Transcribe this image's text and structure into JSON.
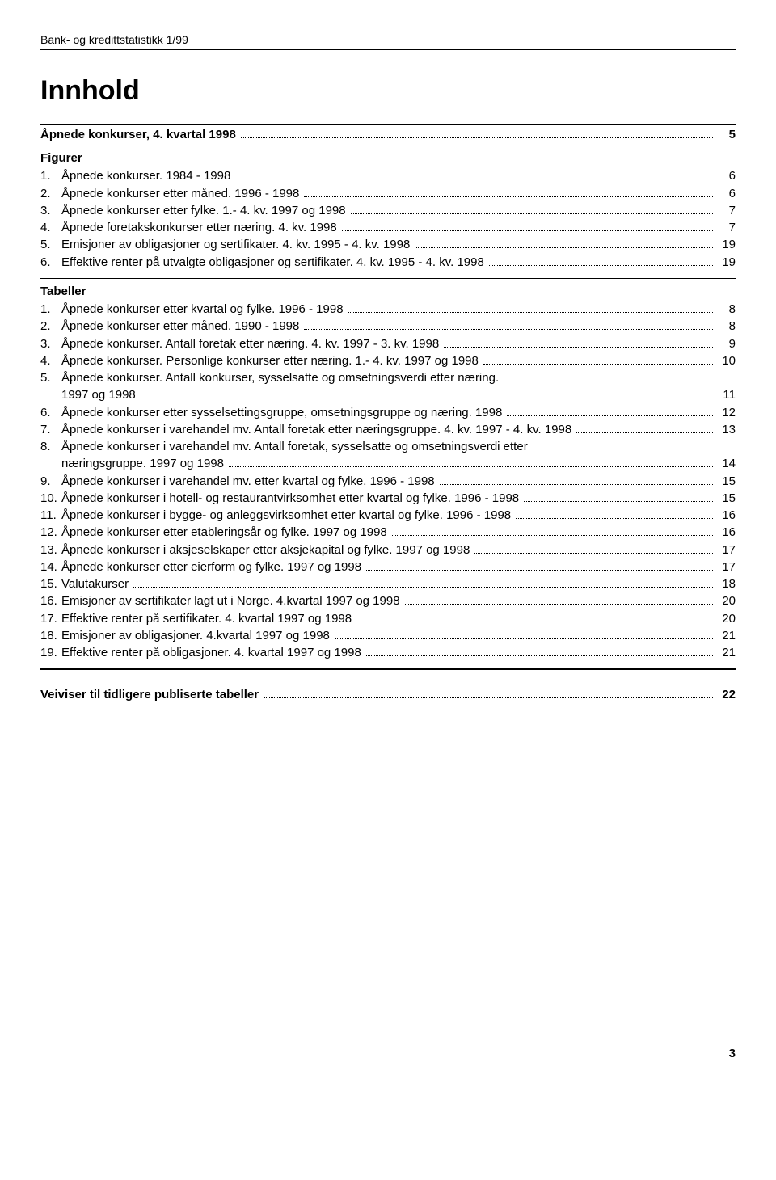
{
  "header": "Bank- og kredittstatistikk 1/99",
  "title": "Innhold",
  "top_entry": {
    "label": "Åpnede konkurser, 4. kvartal 1998",
    "page": "5"
  },
  "figurer_heading": "Figurer",
  "figurer": [
    {
      "n": "1.",
      "label": "Åpnede konkurser. 1984 - 1998",
      "page": "6"
    },
    {
      "n": "2.",
      "label": "Åpnede konkurser etter måned. 1996 - 1998",
      "page": "6"
    },
    {
      "n": "3.",
      "label": "Åpnede konkurser etter fylke. 1.- 4. kv. 1997 og 1998",
      "page": "7"
    },
    {
      "n": "4.",
      "label": "Åpnede foretakskonkurser etter næring. 4. kv. 1998",
      "page": "7"
    },
    {
      "n": "5.",
      "label": "Emisjoner av obligasjoner og sertifikater. 4. kv. 1995 - 4. kv. 1998",
      "page": "19"
    },
    {
      "n": "6.",
      "label": "Effektive renter på utvalgte obligasjoner og sertifikater. 4. kv. 1995 - 4. kv. 1998",
      "page": "19"
    }
  ],
  "tabeller_heading": "Tabeller",
  "tabeller": [
    {
      "n": "1.",
      "label": "Åpnede konkurser etter kvartal og fylke. 1996 - 1998",
      "page": "8"
    },
    {
      "n": "2.",
      "label": "Åpnede konkurser etter måned. 1990 - 1998",
      "page": "8"
    },
    {
      "n": "3.",
      "label": "Åpnede konkurser. Antall foretak etter næring. 4. kv. 1997 - 3. kv. 1998",
      "page": "9"
    },
    {
      "n": "4.",
      "label": "Åpnede konkurser. Personlige konkurser etter næring. 1.- 4. kv. 1997 og 1998",
      "page": "10"
    },
    {
      "n": "5.",
      "label": "Åpnede konkurser. Antall konkurser, sysselsatte og omsetningsverdi etter næring.",
      "cont": "1997 og 1998",
      "page": "11"
    },
    {
      "n": "6.",
      "label": "Åpnede konkurser etter sysselsettingsgruppe, omsetningsgruppe og næring. 1998",
      "page": "12"
    },
    {
      "n": "7.",
      "label": "Åpnede konkurser i varehandel mv. Antall foretak etter næringsgruppe. 4. kv. 1997 - 4. kv. 1998",
      "page": "13"
    },
    {
      "n": "8.",
      "label": "Åpnede konkurser i varehandel mv. Antall foretak, sysselsatte og omsetningsverdi etter",
      "cont": "næringsgruppe. 1997 og 1998",
      "page": "14"
    },
    {
      "n": "9.",
      "label": "Åpnede konkurser i varehandel mv. etter kvartal og fylke. 1996 - 1998",
      "page": "15"
    },
    {
      "n": "10.",
      "label": "Åpnede konkurser i hotell- og restaurantvirksomhet etter kvartal og fylke. 1996 - 1998",
      "page": "15"
    },
    {
      "n": "11.",
      "label": "Åpnede konkurser i bygge- og anleggsvirksomhet etter kvartal og fylke. 1996 - 1998",
      "page": "16"
    },
    {
      "n": "12.",
      "label": "Åpnede konkurser etter etableringsår og fylke. 1997 og 1998",
      "page": "16"
    },
    {
      "n": "13.",
      "label": "Åpnede konkurser i aksjeselskaper etter aksjekapital og fylke. 1997 og 1998",
      "page": "17"
    },
    {
      "n": "14.",
      "label": "Åpnede konkurser etter eierform og fylke. 1997 og 1998",
      "page": "17"
    },
    {
      "n": "15.",
      "label": "Valutakurser",
      "page": "18"
    },
    {
      "n": "16.",
      "label": "Emisjoner av sertifikater lagt ut i Norge. 4.kvartal 1997 og 1998",
      "page": "20"
    },
    {
      "n": "17.",
      "label": "Effektive renter på sertifikater. 4. kvartal 1997 og 1998",
      "page": "20"
    },
    {
      "n": "18.",
      "label": "Emisjoner av obligasjoner. 4.kvartal 1997 og 1998",
      "page": "21"
    },
    {
      "n": "19.",
      "label": "Effektive renter på obligasjoner. 4. kvartal 1997 og 1998",
      "page": "21"
    }
  ],
  "veiviser": {
    "label": "Veiviser til tidligere publiserte tabeller",
    "page": "22"
  },
  "page_number": "3"
}
